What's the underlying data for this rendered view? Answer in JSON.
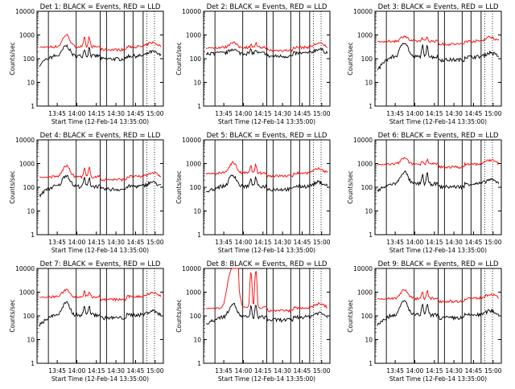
{
  "chart_data": [
    {
      "type": "line",
      "title": "Det 1: BLACK = Events, RED = LLD",
      "events_level": 130,
      "lld_level": 320,
      "events_start": 55,
      "lld_peak": 1000,
      "events_peak": 350,
      "ylim": [
        1,
        10000
      ],
      "yscale": "log"
    },
    {
      "type": "line",
      "title": "Det 2: BLACK = Events, RED = LLD",
      "events_level": 170,
      "lld_level": 300,
      "events_start": 170,
      "lld_peak": 500,
      "events_peak": 260,
      "ylim": [
        1,
        10000
      ],
      "yscale": "log"
    },
    {
      "type": "line",
      "title": "Det 3: BLACK = Events, RED = LLD",
      "events_level": 120,
      "lld_level": 550,
      "events_start": 30,
      "lld_peak": 900,
      "events_peak": 500,
      "ylim": [
        1,
        10000
      ],
      "yscale": "log"
    },
    {
      "type": "line",
      "title": "Det 4: BLACK = Events, RED = LLD",
      "events_level": 110,
      "lld_level": 280,
      "events_start": 45,
      "lld_peak": 800,
      "events_peak": 330,
      "ylim": [
        1,
        10000
      ],
      "yscale": "log"
    },
    {
      "type": "line",
      "title": "Det 5: BLACK = Events, RED = LLD",
      "events_level": 110,
      "lld_level": 400,
      "events_start": 60,
      "lld_peak": 1100,
      "events_peak": 330,
      "ylim": [
        1,
        10000
      ],
      "yscale": "log"
    },
    {
      "type": "line",
      "title": "Det 6: BLACK = Events, RED = LLD",
      "events_level": 140,
      "lld_level": 950,
      "events_start": 70,
      "lld_peak": 1700,
      "events_peak": 450,
      "ylim": [
        1,
        10000
      ],
      "yscale": "log"
    },
    {
      "type": "line",
      "title": "Det 7: BLACK = Events, RED = LLD",
      "events_level": 110,
      "lld_level": 650,
      "events_start": 40,
      "lld_peak": 1300,
      "events_peak": 350,
      "ylim": [
        1,
        10000
      ],
      "yscale": "log"
    },
    {
      "type": "line",
      "title": "Det 8: BLACK = Events, RED = LLD",
      "events_level": 90,
      "lld_level": 220,
      "events_start": 40,
      "lld_peak": 10000,
      "events_peak": 330,
      "ylim": [
        1,
        10000
      ],
      "yscale": "log"
    },
    {
      "type": "line",
      "title": "Det 9: BLACK = Events, RED = LLD",
      "events_level": 110,
      "lld_level": 550,
      "events_start": 40,
      "lld_peak": 1300,
      "events_peak": 420,
      "ylim": [
        1,
        10000
      ],
      "yscale": "log"
    }
  ],
  "axis": {
    "ylabel": "Counts/sec",
    "xlabel": "Start Time (12-Feb-14 13:35:00)",
    "yticks": [
      {
        "label": "1",
        "value": 1
      },
      {
        "label": "10",
        "value": 10
      },
      {
        "label": "100",
        "value": 100
      },
      {
        "label": "1000",
        "value": 1000
      },
      {
        "label": "10000",
        "value": 10000
      }
    ],
    "xticks": [
      "13:45",
      "14:00",
      "14:15",
      "14:30",
      "14:45",
      "15:00"
    ]
  },
  "colors": {
    "events": "#000000",
    "lld": "#ff0000",
    "axes": "#000000"
  }
}
